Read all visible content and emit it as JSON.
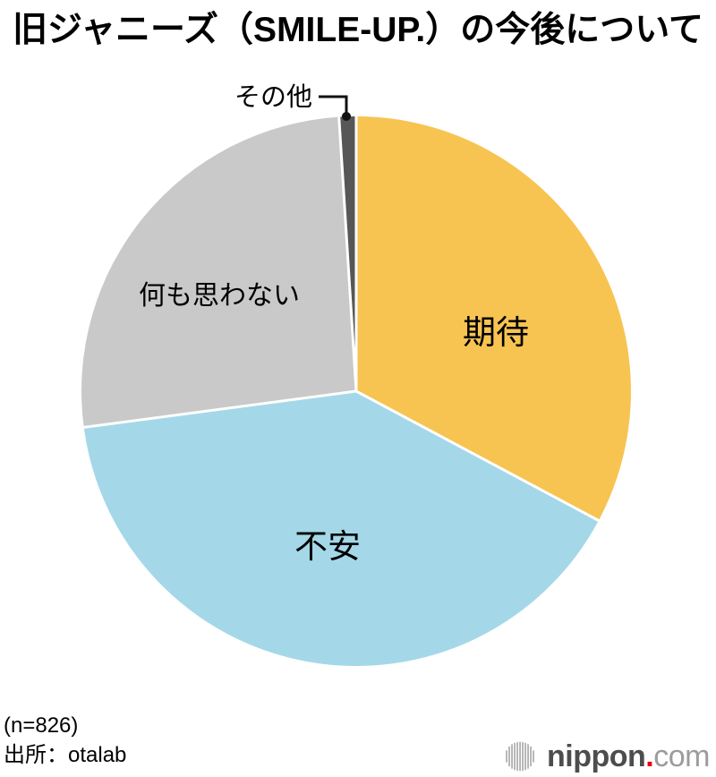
{
  "title": "旧ジャニーズ（SMILE-UP.）の今後について",
  "chart_data": {
    "type": "pie",
    "title": "旧ジャニーズ（SMILE-UP.）の今後について",
    "unit": "%",
    "direction": "clockwise",
    "start_angle_deg": 0,
    "values_are_estimates": true,
    "slices": [
      {
        "label": "期待",
        "value": 32.8,
        "color": "#F7C452"
      },
      {
        "label": "不安",
        "value": 40.1,
        "color": "#A4D8E8"
      },
      {
        "label": "何も思わない",
        "value": 26.1,
        "color": "#C9C9C9"
      },
      {
        "label": "その他",
        "value": 1.0,
        "color": "#575757"
      }
    ],
    "separator_color": "#FFFFFF",
    "leader_line_color": "#111111",
    "sample_size_label": "(n=826)",
    "source_label": "出所：otalab"
  },
  "footer": {
    "sample": "(n=826)",
    "source": "出所：otalab"
  },
  "branding": {
    "logo_text_main": "nippon",
    "logo_text_dot": ".",
    "logo_text_tld": "com",
    "main_color": "#4D4D4D",
    "dot_color": "#E60012",
    "tld_color": "#9C9C9C",
    "icon_color": "#B4B4B4",
    "icon": "audio-bars-circle-icon"
  }
}
